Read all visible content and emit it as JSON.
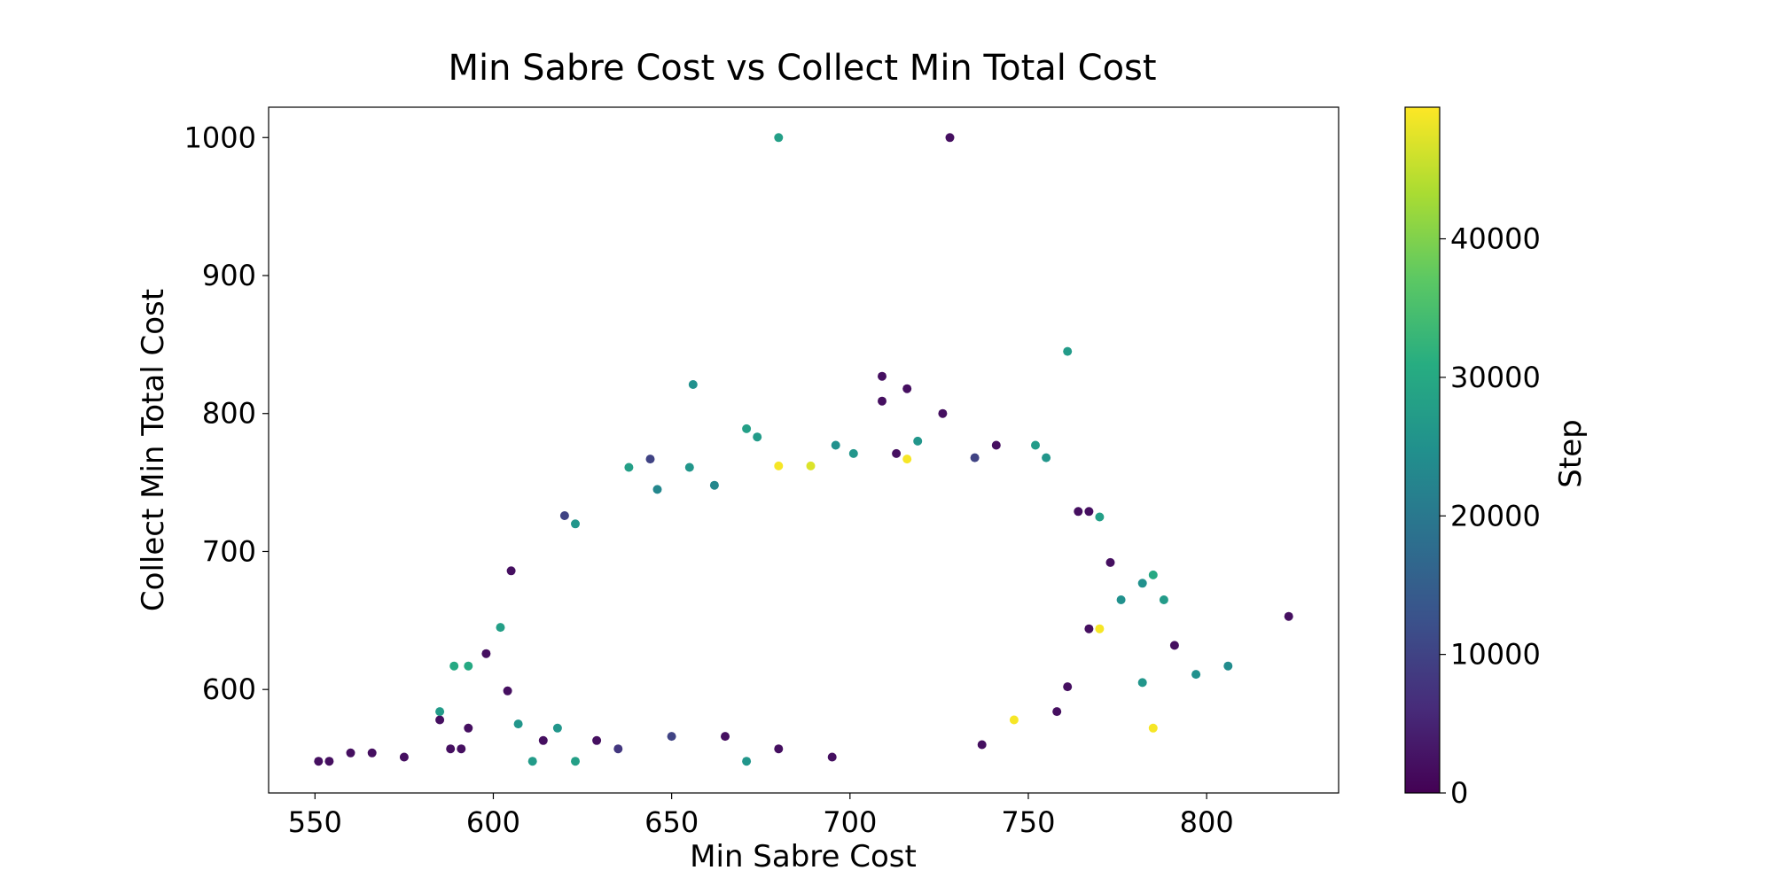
{
  "chart_data": {
    "type": "scatter",
    "title": "Min Sabre Cost vs Collect Min Total Cost",
    "xlabel": "Min Sabre Cost",
    "ylabel": "Collect Min Total Cost",
    "xlim": [
      537,
      837
    ],
    "ylim": [
      525,
      1022
    ],
    "xticks": [
      550,
      600,
      650,
      700,
      750,
      800
    ],
    "yticks": [
      600,
      700,
      800,
      900,
      1000
    ],
    "grid": false,
    "colormap": "viridis",
    "colorbar": {
      "label": "Step",
      "range": [
        0,
        49500
      ],
      "ticks": [
        0,
        10000,
        20000,
        30000,
        40000
      ]
    },
    "points": [
      [
        680,
        1000,
        28000
      ],
      [
        728,
        1000,
        2000
      ],
      [
        761,
        845,
        27000
      ],
      [
        656,
        821,
        25000
      ],
      [
        709,
        827,
        2000
      ],
      [
        709,
        809,
        2000
      ],
      [
        716,
        818,
        2000
      ],
      [
        726,
        800,
        2000
      ],
      [
        551,
        548,
        2000
      ],
      [
        554,
        548,
        2000
      ],
      [
        560,
        554,
        2000
      ],
      [
        566,
        554,
        2000
      ],
      [
        575,
        551,
        2000
      ],
      [
        588,
        557,
        2000
      ],
      [
        591,
        557,
        2000
      ],
      [
        593,
        572,
        2000
      ],
      [
        585,
        578,
        2000
      ],
      [
        823,
        653,
        2000
      ],
      [
        791,
        632,
        2000
      ],
      [
        773,
        692,
        2000
      ],
      [
        797,
        611,
        25000
      ],
      [
        806,
        617,
        24000
      ],
      [
        782,
        605,
        26000
      ],
      [
        785,
        572,
        49000
      ],
      [
        785,
        683,
        30000
      ],
      [
        788,
        665,
        27000
      ],
      [
        776,
        665,
        25000
      ],
      [
        782,
        677,
        25000
      ],
      [
        611,
        548,
        27000
      ],
      [
        623,
        548,
        28000
      ],
      [
        671,
        789,
        28000
      ],
      [
        674,
        783,
        27000
      ],
      [
        680,
        762,
        49000
      ],
      [
        689,
        762,
        47000
      ],
      [
        696,
        777,
        25000
      ],
      [
        701,
        771,
        26000
      ],
      [
        713,
        771,
        2000
      ],
      [
        719,
        780,
        26000
      ],
      [
        716,
        767,
        49000
      ],
      [
        735,
        768,
        10000
      ],
      [
        741,
        777,
        2000
      ],
      [
        752,
        777,
        27000
      ],
      [
        755,
        768,
        26000
      ],
      [
        665,
        566,
        2000
      ],
      [
        671,
        548,
        26000
      ],
      [
        680,
        557,
        2000
      ],
      [
        695,
        551,
        2000
      ],
      [
        737,
        560,
        2000
      ],
      [
        746,
        578,
        49000
      ],
      [
        761,
        602,
        2000
      ],
      [
        758,
        584,
        2000
      ],
      [
        767,
        644,
        2000
      ],
      [
        770,
        644,
        49000
      ],
      [
        770,
        725,
        28000
      ],
      [
        767,
        729,
        2000
      ],
      [
        764,
        729,
        2000
      ],
      [
        620,
        726,
        10000
      ],
      [
        623,
        720,
        26000
      ],
      [
        605,
        686,
        2000
      ],
      [
        638,
        761,
        28000
      ],
      [
        644,
        767,
        10000
      ],
      [
        646,
        745,
        23000
      ],
      [
        655,
        761,
        26000
      ],
      [
        662,
        748,
        23000
      ],
      [
        585,
        584,
        27000
      ],
      [
        589,
        617,
        30000
      ],
      [
        593,
        617,
        30000
      ],
      [
        598,
        626,
        2000
      ],
      [
        602,
        645,
        28000
      ],
      [
        604,
        599,
        2000
      ],
      [
        607,
        575,
        26000
      ],
      [
        614,
        563,
        2000
      ],
      [
        618,
        572,
        26000
      ],
      [
        629,
        563,
        2000
      ],
      [
        635,
        557,
        8000
      ],
      [
        650,
        566,
        10000
      ]
    ]
  }
}
